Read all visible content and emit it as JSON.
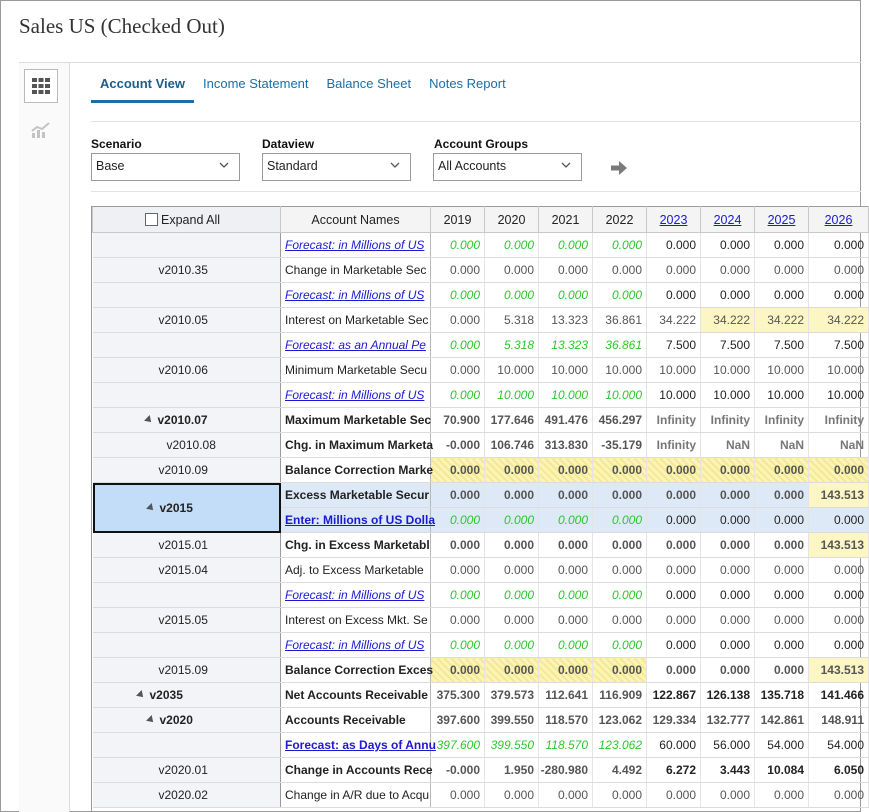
{
  "page": {
    "title": "Sales US (Checked Out)"
  },
  "side": {
    "grid_icon": "grid-icon",
    "chart_icon": "chart-icon"
  },
  "tabs": [
    {
      "label": "Account View",
      "active": true
    },
    {
      "label": "Income Statement",
      "active": false
    },
    {
      "label": "Balance Sheet",
      "active": false
    },
    {
      "label": "Notes Report",
      "active": false
    }
  ],
  "filters": {
    "scenario": {
      "label": "Scenario",
      "value": "Base"
    },
    "dataview": {
      "label": "Dataview",
      "value": "Standard"
    },
    "account_groups": {
      "label": "Account Groups",
      "value": "All Accounts"
    },
    "go_icon": "arrow-right-icon"
  },
  "grid": {
    "expand_all": "Expand All",
    "names_header": "Account Names",
    "years": [
      "2019",
      "2020",
      "2021",
      "2022",
      "2023",
      "2024",
      "2025",
      "2026"
    ],
    "rows": [
      {
        "id": "",
        "name": "Forecast: in Millions of US",
        "link": true,
        "vals": [
          "0.000",
          "0.000",
          "0.000",
          "0.000",
          "0.000",
          "0.000",
          "0.000",
          "0.000"
        ]
      },
      {
        "id": "v2010.35",
        "name": "Change in Marketable Sec",
        "vals": [
          "0.000",
          "0.000",
          "0.000",
          "0.000",
          "0.000",
          "0.000",
          "0.000",
          "0.000"
        ]
      },
      {
        "id": "",
        "name": "Forecast: in Millions of US",
        "link": true,
        "vals": [
          "0.000",
          "0.000",
          "0.000",
          "0.000",
          "0.000",
          "0.000",
          "0.000",
          "0.000"
        ]
      },
      {
        "id": "v2010.05",
        "name": "Interest on Marketable Sec",
        "vals": [
          "0.000",
          "5.318",
          "13.323",
          "36.861",
          "34.222",
          "34.222",
          "34.222",
          "34.222"
        ]
      },
      {
        "id": "",
        "name": "Forecast: as an Annual Pe",
        "link": true,
        "vals": [
          "0.000",
          "5.318",
          "13.323",
          "36.861",
          "7.500",
          "7.500",
          "7.500",
          "7.500"
        ]
      },
      {
        "id": "v2010.06",
        "name": "Minimum Marketable Secu",
        "vals": [
          "0.000",
          "10.000",
          "10.000",
          "10.000",
          "10.000",
          "10.000",
          "10.000",
          "10.000"
        ]
      },
      {
        "id": "",
        "name": "Forecast: in Millions of US",
        "link": true,
        "vals": [
          "0.000",
          "10.000",
          "10.000",
          "10.000",
          "10.000",
          "10.000",
          "10.000",
          "10.000"
        ]
      },
      {
        "id": "v2010.07",
        "name": "Maximum Marketable Sec",
        "bold": true,
        "vals": [
          "70.900",
          "177.646",
          "491.476",
          "456.297",
          "Infinity",
          "Infinity",
          "Infinity",
          "Infinity"
        ]
      },
      {
        "id": "v2010.08",
        "name": "Chg. in Maximum Marketa",
        "bold": true,
        "vals": [
          "-0.000",
          "106.746",
          "313.830",
          "-35.179",
          "Infinity",
          "NaN",
          "NaN",
          "NaN"
        ]
      },
      {
        "id": "v2010.09",
        "name": "Balance Correction Marke",
        "bold": true,
        "vals": [
          "0.000",
          "0.000",
          "0.000",
          "0.000",
          "0.000",
          "0.000",
          "0.000",
          "0.000"
        ]
      },
      {
        "id": "v2015",
        "name": "Excess Marketable Secur",
        "bold": true,
        "vals": [
          "0.000",
          "0.000",
          "0.000",
          "0.000",
          "0.000",
          "0.000",
          "0.000",
          "143.513"
        ]
      },
      {
        "id": "",
        "name": "Enter: Millions of US Dolla",
        "link": true,
        "bold": true,
        "vals": [
          "0.000",
          "0.000",
          "0.000",
          "0.000",
          "0.000",
          "0.000",
          "0.000",
          "0.000"
        ]
      },
      {
        "id": "v2015.01",
        "name": "Chg. in Excess Marketabl",
        "bold": true,
        "vals": [
          "0.000",
          "0.000",
          "0.000",
          "0.000",
          "0.000",
          "0.000",
          "0.000",
          "143.513"
        ]
      },
      {
        "id": "v2015.04",
        "name": "Adj. to Excess Marketable",
        "vals": [
          "0.000",
          "0.000",
          "0.000",
          "0.000",
          "0.000",
          "0.000",
          "0.000",
          "0.000"
        ]
      },
      {
        "id": "",
        "name": "Forecast: in Millions of US",
        "link": true,
        "vals": [
          "0.000",
          "0.000",
          "0.000",
          "0.000",
          "0.000",
          "0.000",
          "0.000",
          "0.000"
        ]
      },
      {
        "id": "v2015.05",
        "name": "Interest on Excess Mkt. Se",
        "vals": [
          "0.000",
          "0.000",
          "0.000",
          "0.000",
          "0.000",
          "0.000",
          "0.000",
          "0.000"
        ]
      },
      {
        "id": "",
        "name": "Forecast: in Millions of US",
        "link": true,
        "vals": [
          "0.000",
          "0.000",
          "0.000",
          "0.000",
          "0.000",
          "0.000",
          "0.000",
          "0.000"
        ]
      },
      {
        "id": "v2015.09",
        "name": "Balance Correction Exces",
        "bold": true,
        "vals": [
          "0.000",
          "0.000",
          "0.000",
          "0.000",
          "0.000",
          "0.000",
          "0.000",
          "143.513"
        ]
      },
      {
        "id": "v2035",
        "name": "Net Accounts Receivable",
        "bold": true,
        "vals": [
          "375.300",
          "379.573",
          "112.641",
          "116.909",
          "122.867",
          "126.138",
          "135.718",
          "141.466"
        ]
      },
      {
        "id": "v2020",
        "name": "Accounts Receivable",
        "bold": true,
        "vals": [
          "397.600",
          "399.550",
          "118.570",
          "123.062",
          "129.334",
          "132.777",
          "142.861",
          "148.911"
        ]
      },
      {
        "id": "",
        "name": "Forecast: as Days of Annu",
        "link": true,
        "bold": true,
        "vals": [
          "397.600",
          "399.550",
          "118.570",
          "123.062",
          "60.000",
          "56.000",
          "54.000",
          "54.000"
        ]
      },
      {
        "id": "v2020.01",
        "name": "Change in Accounts Rece",
        "bold": true,
        "vals": [
          "-0.000",
          "1.950",
          "-280.980",
          "4.492",
          "6.272",
          "3.443",
          "10.084",
          "6.050"
        ]
      },
      {
        "id": "v2020.02",
        "name": "Change in A/R due to Acqu",
        "vals": [
          "0.000",
          "0.000",
          "0.000",
          "0.000",
          "0.000",
          "0.000",
          "0.000",
          "0.000"
        ]
      }
    ]
  }
}
